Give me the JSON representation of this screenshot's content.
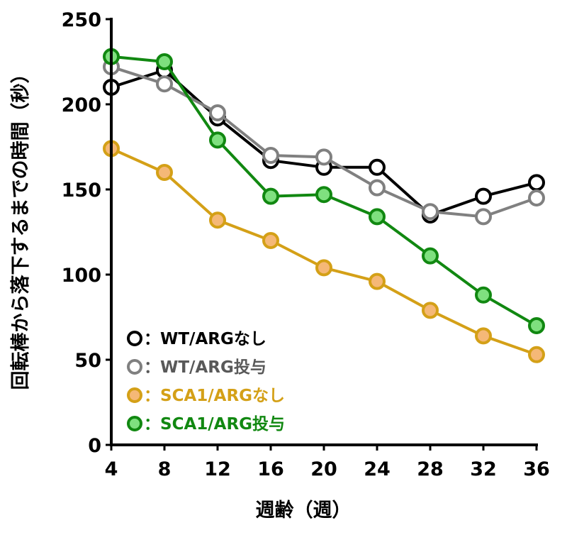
{
  "chart_data": {
    "type": "line",
    "title": "",
    "xlabel": "週齢（週）",
    "ylabel": "回転棒から落下するまでの時間（秒）",
    "x": [
      4,
      8,
      12,
      16,
      20,
      24,
      28,
      32,
      36
    ],
    "x_ticks": [
      "4",
      "8",
      "12",
      "16",
      "20",
      "24",
      "28",
      "32",
      "36"
    ],
    "y_ticks": [
      "0",
      "50",
      "100",
      "150",
      "200",
      "250"
    ],
    "xlim": [
      4,
      36
    ],
    "ylim": [
      0,
      250
    ],
    "grid": false,
    "legend_position": "bottom-left",
    "series": [
      {
        "name": "WT/ARGなし",
        "legend_label": "：WT/ARGなし",
        "line_color": "#000000",
        "fill_color": "#ffffff",
        "text_color": "#000000",
        "values": [
          210,
          220,
          192,
          167,
          163,
          163,
          135,
          146,
          154
        ]
      },
      {
        "name": "WT/ARG投与",
        "legend_label": "：WT/ARG投与",
        "line_color": "#808080",
        "fill_color": "#ffffff",
        "text_color": "#595959",
        "values": [
          222,
          212,
          195,
          170,
          169,
          151,
          137,
          134,
          145
        ]
      },
      {
        "name": "SCA1/ARGなし",
        "legend_label": "：SCA1/ARGなし",
        "line_color": "#D4A017",
        "fill_color": "#F5B877",
        "text_color": "#D4A017",
        "values": [
          174,
          160,
          132,
          120,
          104,
          96,
          79,
          64,
          53
        ]
      },
      {
        "name": "SCA1/ARG投与",
        "legend_label": "：SCA1/ARG投与",
        "line_color": "#118811",
        "fill_color": "#7FE07F",
        "text_color": "#118811",
        "values": [
          228,
          225,
          179,
          146,
          147,
          134,
          111,
          88,
          70
        ]
      }
    ]
  }
}
